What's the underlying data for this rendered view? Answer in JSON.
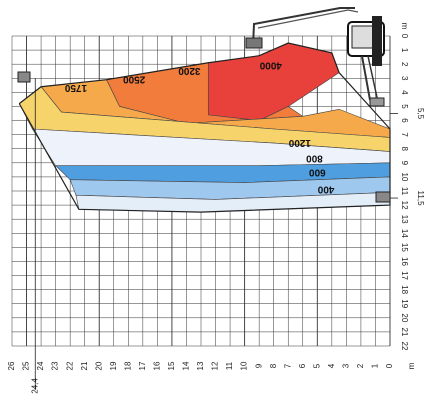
{
  "chart_data": {
    "type": "area",
    "title": "",
    "x_axis": {
      "range": [
        0,
        26
      ],
      "ticks": [
        26,
        25,
        24,
        23,
        22,
        21,
        20,
        19,
        18,
        17,
        16,
        15,
        14,
        13,
        12,
        11,
        10,
        9,
        8,
        7,
        6,
        5,
        4,
        3,
        2,
        1,
        0
      ],
      "extra_label": "24,4",
      "unit": "m"
    },
    "y_axis": {
      "range": [
        0,
        22
      ],
      "ticks": [
        0,
        1,
        2,
        3,
        4,
        5,
        6,
        7,
        8,
        9,
        10,
        11,
        12,
        13,
        14,
        15,
        16,
        17,
        18,
        19,
        20,
        21,
        22
      ],
      "extra_labels": [
        "5,5",
        "11,5"
      ],
      "unit": "m"
    },
    "zones": [
      {
        "label": "4000",
        "color": "#e8403a"
      },
      {
        "label": "3200",
        "color": "#f27c3c"
      },
      {
        "label": "2500",
        "color": "#f5a94a"
      },
      {
        "label": "1750",
        "color": "#f7d36b"
      },
      {
        "label": "1200",
        "color": "#eef3fb"
      },
      {
        "label": "800",
        "color": "#4f9ee0"
      },
      {
        "label": "600",
        "color": "#9fc8ef"
      },
      {
        "label": "400",
        "color": "#e4eef9"
      }
    ],
    "grid": true
  }
}
